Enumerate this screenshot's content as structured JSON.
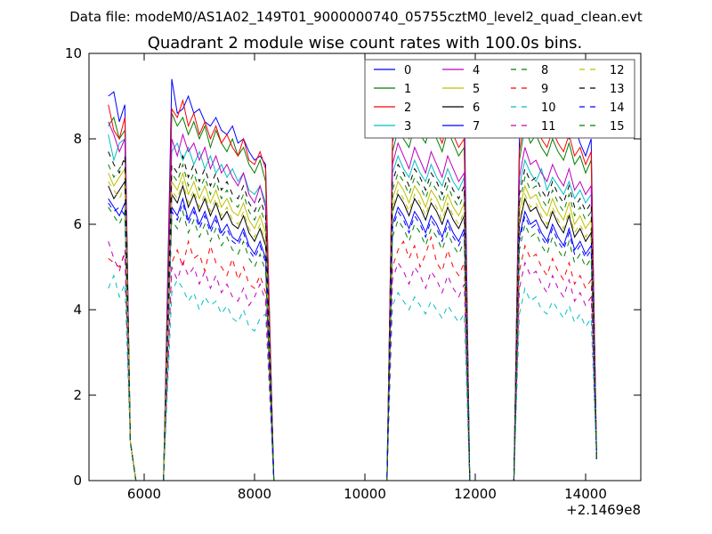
{
  "chart_data": {
    "type": "line",
    "suptitle": "Data file: modeM0/AS1A02_149T01_9000000740_05755cztM0_level2_quad_clean.evt",
    "title": "Quadrant 2 module wise count rates with 100.0s bins.",
    "xlabel": "",
    "ylabel": "",
    "x_offset_label": "+2.1469e8",
    "xlim": [
      5000,
      15000
    ],
    "ylim": [
      0,
      10
    ],
    "xticks": [
      6000,
      8000,
      10000,
      12000,
      14000
    ],
    "xtick_labels": [
      "6000",
      "8000",
      "10000",
      "12000",
      "14000"
    ],
    "yticks": [
      0,
      2,
      4,
      6,
      8,
      10
    ],
    "ytick_labels": [
      "0",
      "2",
      "4",
      "6",
      "8",
      "10"
    ],
    "legend_position": "top-right",
    "x": [
      5350,
      5450,
      5550,
      5650,
      5750,
      5850,
      6050,
      6350,
      6500,
      6600,
      6700,
      6800,
      6900,
      7000,
      7100,
      7200,
      7300,
      7400,
      7500,
      7600,
      7700,
      7800,
      7900,
      8000,
      8100,
      8200,
      8350,
      10400,
      10500,
      10600,
      10700,
      10800,
      10900,
      11000,
      11100,
      11200,
      11300,
      11400,
      11500,
      11600,
      11700,
      11800,
      11900,
      12700,
      12800,
      12900,
      13000,
      13100,
      13200,
      13300,
      13400,
      13500,
      13600,
      13700,
      13800,
      13900,
      14000,
      14100,
      14200
    ],
    "series": [
      {
        "name": "0",
        "color": "#0000ff",
        "style": "solid",
        "values": [
          9.0,
          9.1,
          8.4,
          8.8,
          0.9,
          0,
          0,
          0,
          9.4,
          8.6,
          8.7,
          9.0,
          8.6,
          8.7,
          8.4,
          8.3,
          8.5,
          8.2,
          8.1,
          8.3,
          7.9,
          8.0,
          7.7,
          7.5,
          7.6,
          7.4,
          0,
          0,
          7.9,
          8.8,
          8.7,
          8.3,
          8.6,
          9.0,
          8.7,
          9.3,
          8.6,
          8.8,
          8.4,
          8.5,
          8.2,
          8.9,
          0,
          0,
          8.0,
          9.1,
          8.6,
          8.4,
          8.7,
          8.3,
          8.1,
          8.5,
          8.2,
          8.0,
          8.3,
          7.9,
          7.6,
          8.0,
          0.5
        ]
      },
      {
        "name": "1",
        "color": "#008000",
        "style": "solid",
        "values": [
          8.3,
          8.5,
          8.0,
          8.2,
          0.9,
          0,
          0,
          0,
          8.6,
          8.3,
          8.5,
          8.1,
          8.4,
          8.0,
          8.3,
          7.8,
          8.2,
          7.9,
          7.7,
          8.0,
          7.6,
          7.8,
          7.4,
          7.2,
          7.5,
          7.0,
          0,
          0,
          7.7,
          8.2,
          8.0,
          7.8,
          8.3,
          8.1,
          7.9,
          8.4,
          8.0,
          7.7,
          8.2,
          7.9,
          7.6,
          7.8,
          0,
          0,
          7.5,
          8.3,
          7.9,
          8.1,
          7.8,
          7.6,
          8.0,
          7.7,
          7.5,
          7.9,
          7.4,
          7.6,
          7.2,
          7.5,
          0.5
        ]
      },
      {
        "name": "2",
        "color": "#ff0000",
        "style": "solid",
        "values": [
          8.8,
          8.2,
          8.0,
          8.5,
          0.9,
          0,
          0,
          0,
          8.7,
          8.5,
          8.9,
          8.3,
          8.6,
          8.1,
          8.4,
          8.0,
          8.3,
          7.9,
          8.1,
          7.8,
          7.6,
          8.0,
          7.5,
          7.4,
          7.7,
          7.3,
          0,
          0,
          8.0,
          8.5,
          8.2,
          8.0,
          8.6,
          8.3,
          8.1,
          8.6,
          8.2,
          7.9,
          8.4,
          8.1,
          7.8,
          8.0,
          0,
          0,
          7.7,
          8.6,
          8.2,
          8.3,
          8.0,
          7.8,
          8.2,
          7.9,
          7.7,
          8.1,
          7.6,
          7.8,
          7.4,
          7.7,
          0.5
        ]
      },
      {
        "name": "3",
        "color": "#00bfbf",
        "style": "solid",
        "values": [
          8.1,
          7.5,
          7.9,
          8.0,
          0.9,
          0,
          0,
          0,
          7.7,
          7.9,
          7.5,
          7.8,
          7.4,
          7.7,
          7.3,
          7.6,
          7.2,
          7.4,
          7.1,
          7.3,
          7.0,
          7.2,
          6.8,
          6.7,
          6.9,
          6.5,
          0,
          0,
          7.2,
          7.6,
          7.3,
          7.1,
          7.5,
          7.2,
          7.0,
          7.4,
          7.1,
          6.9,
          7.3,
          7.0,
          6.8,
          7.1,
          0,
          0,
          6.9,
          7.5,
          7.2,
          7.0,
          7.3,
          6.8,
          7.1,
          6.9,
          6.7,
          7.0,
          6.6,
          6.8,
          6.5,
          6.7,
          0.5
        ]
      },
      {
        "name": "4",
        "color": "#bf00bf",
        "style": "solid",
        "values": [
          8.4,
          8.1,
          7.7,
          8.0,
          0.9,
          0,
          0,
          0,
          8.0,
          7.6,
          8.1,
          7.7,
          7.9,
          7.5,
          7.8,
          7.3,
          7.6,
          7.2,
          7.4,
          7.1,
          6.9,
          7.2,
          6.7,
          6.5,
          6.9,
          6.4,
          0,
          0,
          7.4,
          7.9,
          7.6,
          7.3,
          7.8,
          7.5,
          7.2,
          7.7,
          7.4,
          7.1,
          7.6,
          7.3,
          7.0,
          7.2,
          0,
          0,
          7.1,
          7.8,
          7.4,
          7.5,
          7.2,
          7.0,
          7.4,
          7.1,
          6.9,
          7.3,
          6.8,
          7.0,
          6.7,
          6.9,
          0.5
        ]
      },
      {
        "name": "5",
        "color": "#bfbf00",
        "style": "solid",
        "values": [
          7.2,
          6.9,
          7.1,
          7.3,
          0.9,
          0,
          0,
          0,
          7.0,
          6.8,
          7.2,
          6.7,
          7.0,
          6.6,
          6.9,
          6.5,
          6.8,
          6.4,
          6.6,
          6.3,
          6.2,
          6.5,
          6.1,
          5.9,
          6.2,
          5.8,
          0,
          0,
          6.6,
          7.0,
          6.8,
          6.5,
          6.9,
          6.7,
          6.4,
          6.8,
          6.6,
          6.3,
          6.7,
          6.4,
          6.2,
          6.5,
          0,
          0,
          6.3,
          6.9,
          6.6,
          6.7,
          6.4,
          6.2,
          6.6,
          6.3,
          6.1,
          6.5,
          6.0,
          6.2,
          5.9,
          6.1,
          0.5
        ]
      },
      {
        "name": "6",
        "color": "#000000",
        "style": "solid",
        "values": [
          6.9,
          6.6,
          6.8,
          7.0,
          0.9,
          0,
          0,
          0,
          6.7,
          6.5,
          6.9,
          6.4,
          6.7,
          6.3,
          6.6,
          6.2,
          6.5,
          6.1,
          6.3,
          6.0,
          5.9,
          6.2,
          5.8,
          5.6,
          5.9,
          5.5,
          0,
          0,
          6.3,
          6.7,
          6.5,
          6.2,
          6.6,
          6.4,
          6.1,
          6.5,
          6.3,
          6.0,
          6.4,
          6.1,
          5.9,
          6.2,
          0,
          0,
          6.0,
          6.6,
          6.3,
          6.4,
          6.1,
          5.9,
          6.3,
          6.0,
          5.8,
          6.2,
          5.7,
          5.9,
          5.6,
          5.8,
          0.5
        ]
      },
      {
        "name": "7",
        "color": "#0000ff",
        "style": "solid",
        "values": [
          6.6,
          6.4,
          6.2,
          6.5,
          0.9,
          0,
          0,
          0,
          6.4,
          6.2,
          6.6,
          6.1,
          6.4,
          6.0,
          6.3,
          5.9,
          6.2,
          5.8,
          6.0,
          5.7,
          5.6,
          5.9,
          5.5,
          5.3,
          5.6,
          5.2,
          0,
          0,
          6.0,
          6.4,
          6.2,
          5.9,
          6.3,
          6.1,
          5.8,
          6.2,
          6.0,
          5.7,
          6.1,
          5.8,
          5.6,
          5.9,
          0,
          0,
          5.7,
          6.3,
          6.0,
          6.1,
          5.8,
          5.6,
          6.0,
          5.7,
          5.5,
          5.9,
          5.4,
          5.6,
          5.3,
          5.5,
          0.5
        ]
      },
      {
        "name": "8",
        "color": "#008000",
        "style": "dashed",
        "values": [
          7.4,
          7.1,
          7.3,
          7.5,
          0.9,
          0,
          0,
          0,
          7.2,
          7.0,
          7.4,
          6.9,
          7.2,
          6.8,
          7.1,
          6.7,
          7.0,
          6.6,
          6.8,
          6.5,
          6.4,
          6.7,
          6.3,
          6.1,
          6.4,
          6.0,
          0,
          0,
          6.8,
          7.2,
          7.0,
          6.7,
          7.1,
          6.9,
          6.6,
          7.0,
          6.8,
          6.5,
          6.9,
          6.6,
          6.4,
          6.7,
          0,
          0,
          6.5,
          7.1,
          6.8,
          6.9,
          6.6,
          6.4,
          6.8,
          6.5,
          6.3,
          6.7,
          6.2,
          6.4,
          6.1,
          6.3,
          0.5
        ]
      },
      {
        "name": "9",
        "color": "#ff0000",
        "style": "dashed",
        "values": [
          5.2,
          5.1,
          5.0,
          5.3,
          0.9,
          0,
          0,
          0,
          5.1,
          5.4,
          5.0,
          5.6,
          5.2,
          5.3,
          4.9,
          5.5,
          5.1,
          5.0,
          4.8,
          5.2,
          4.7,
          5.0,
          4.6,
          4.5,
          4.8,
          4.4,
          0,
          0,
          5.0,
          5.4,
          5.6,
          5.2,
          5.5,
          5.0,
          5.3,
          5.7,
          5.1,
          4.9,
          5.4,
          5.0,
          4.8,
          5.1,
          0,
          0,
          4.9,
          5.5,
          5.2,
          5.3,
          5.0,
          4.8,
          5.2,
          4.9,
          4.7,
          5.1,
          4.6,
          4.8,
          4.5,
          4.7,
          0.5
        ]
      },
      {
        "name": "10",
        "color": "#00bfbf",
        "style": "dashed",
        "values": [
          4.5,
          4.8,
          4.3,
          4.6,
          0.9,
          0,
          0,
          0,
          4.4,
          4.7,
          4.5,
          4.2,
          4.4,
          4.0,
          4.3,
          4.1,
          4.2,
          3.9,
          4.1,
          3.8,
          3.7,
          4.0,
          3.6,
          3.5,
          3.8,
          3.9,
          0,
          0,
          4.1,
          4.4,
          4.2,
          4.0,
          4.3,
          4.1,
          3.9,
          4.2,
          4.0,
          3.8,
          4.1,
          3.9,
          3.7,
          3.9,
          0,
          0,
          3.9,
          4.5,
          4.2,
          4.3,
          4.0,
          3.9,
          4.2,
          4.0,
          3.8,
          4.1,
          3.7,
          3.9,
          3.6,
          3.8,
          0.5
        ]
      },
      {
        "name": "11",
        "color": "#bf00bf",
        "style": "dashed",
        "values": [
          5.6,
          5.2,
          4.9,
          5.4,
          0.9,
          0,
          0,
          0,
          5.0,
          4.7,
          5.1,
          4.8,
          5.0,
          4.6,
          4.9,
          4.5,
          4.8,
          4.4,
          4.6,
          4.3,
          4.2,
          4.5,
          4.1,
          4.3,
          4.6,
          4.2,
          0,
          0,
          4.7,
          5.1,
          4.9,
          4.6,
          5.0,
          4.8,
          4.5,
          4.9,
          4.7,
          4.4,
          4.8,
          4.5,
          4.3,
          4.6,
          0,
          0,
          4.5,
          5.1,
          4.8,
          4.9,
          4.6,
          4.4,
          4.8,
          4.5,
          4.3,
          4.7,
          4.2,
          4.4,
          4.1,
          4.3,
          0.5
        ]
      },
      {
        "name": "12",
        "color": "#bfbf00",
        "style": "dashed",
        "values": [
          7.0,
          6.8,
          6.6,
          6.9,
          0.9,
          0,
          0,
          0,
          6.8,
          6.6,
          7.0,
          6.5,
          6.8,
          6.4,
          6.7,
          6.3,
          6.6,
          6.2,
          6.4,
          6.1,
          6.0,
          6.3,
          5.9,
          5.7,
          6.0,
          5.6,
          0,
          0,
          6.4,
          6.8,
          6.6,
          6.3,
          6.7,
          6.5,
          6.2,
          6.6,
          6.4,
          6.1,
          6.5,
          6.2,
          6.0,
          6.3,
          0,
          0,
          6.1,
          6.7,
          6.4,
          6.5,
          6.2,
          6.0,
          6.4,
          6.1,
          5.9,
          6.3,
          5.8,
          6.0,
          5.7,
          5.9,
          0.5
        ]
      },
      {
        "name": "13",
        "color": "#000000",
        "style": "dashed",
        "values": [
          7.7,
          7.4,
          7.2,
          7.6,
          0.9,
          0,
          0,
          0,
          7.4,
          7.2,
          7.6,
          7.1,
          7.4,
          7.0,
          7.3,
          6.9,
          7.2,
          6.8,
          7.0,
          6.7,
          6.6,
          6.9,
          6.5,
          6.3,
          6.6,
          6.2,
          0,
          0,
          7.0,
          7.4,
          7.2,
          6.9,
          7.3,
          7.1,
          6.8,
          7.2,
          7.0,
          6.7,
          7.1,
          6.8,
          6.6,
          6.9,
          0,
          0,
          6.7,
          7.3,
          7.0,
          7.1,
          6.8,
          6.6,
          7.0,
          6.7,
          6.5,
          6.9,
          6.4,
          6.6,
          6.3,
          6.5,
          0.5
        ]
      },
      {
        "name": "14",
        "color": "#0000ff",
        "style": "dashed",
        "values": [
          6.5,
          6.3,
          6.4,
          6.2,
          0.9,
          0,
          0,
          0,
          6.3,
          6.1,
          6.5,
          6.0,
          6.3,
          5.9,
          6.2,
          5.8,
          6.1,
          5.7,
          5.9,
          5.6,
          5.5,
          5.8,
          5.4,
          5.2,
          5.5,
          5.1,
          0,
          0,
          5.9,
          6.3,
          6.1,
          5.8,
          6.2,
          6.0,
          5.7,
          6.1,
          5.9,
          5.6,
          6.0,
          5.7,
          5.5,
          5.8,
          0,
          0,
          5.6,
          6.2,
          5.9,
          6.0,
          5.7,
          5.5,
          5.9,
          5.6,
          5.4,
          5.8,
          5.3,
          5.5,
          5.2,
          5.4,
          0.5
        ]
      },
      {
        "name": "15",
        "color": "#008000",
        "style": "dashed",
        "values": [
          6.4,
          6.2,
          6.0,
          6.3,
          0.9,
          0,
          0,
          0,
          6.1,
          5.9,
          6.3,
          5.8,
          6.1,
          5.7,
          6.0,
          5.6,
          5.9,
          5.5,
          5.7,
          5.4,
          5.3,
          5.6,
          5.2,
          5.0,
          5.3,
          4.9,
          0,
          0,
          5.7,
          6.1,
          5.9,
          5.6,
          6.0,
          5.8,
          5.5,
          5.9,
          5.7,
          5.4,
          5.8,
          5.5,
          5.3,
          5.6,
          0,
          0,
          5.4,
          6.0,
          5.7,
          5.8,
          5.5,
          5.3,
          5.7,
          5.4,
          5.2,
          5.6,
          5.1,
          5.3,
          5.0,
          5.2,
          0.5
        ]
      }
    ]
  }
}
